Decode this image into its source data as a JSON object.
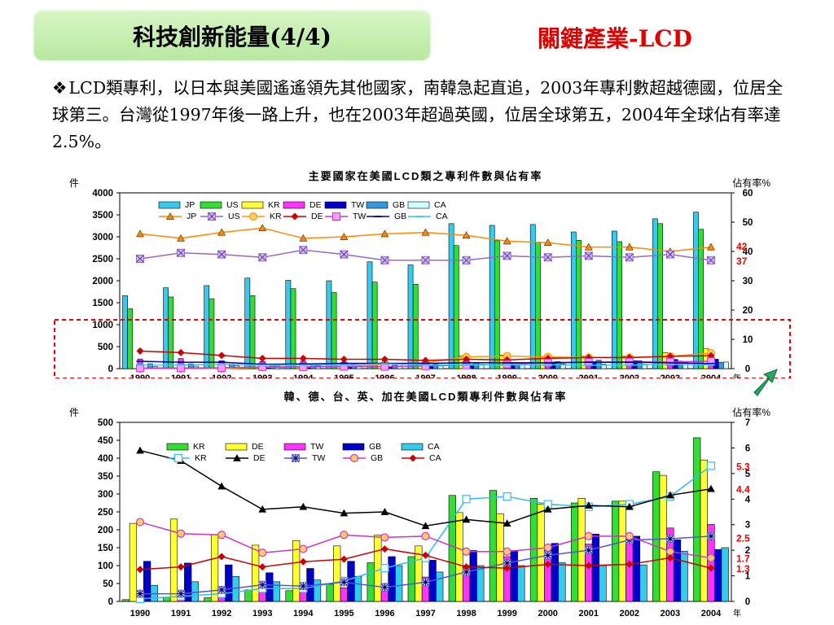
{
  "slide": {
    "title": "科技創新能量(4/4)",
    "subject": "關鍵產業-LCD",
    "bullet_icon": "diamond-bullet",
    "body": "LCD類專利，以日本與美國遙遙領先其他國家，南韓急起直追，2003年專利數超越德國，位居全球第三。台灣從1997年後一路上升，也在2003年超過英國，位居全球第五，2004年全球佔有率達2.5%。",
    "arrow_icon": "green-arrow-icon"
  },
  "chart_data": [
    {
      "type": "bar",
      "title": "主要國家在美國LCD類之專利件數與佔有率",
      "ylabel_left": "件",
      "ylabel_right": "佔有率%",
      "xunit": "年",
      "categories": [
        "1990",
        "1991",
        "1992",
        "1993",
        "1994",
        "1995",
        "1996",
        "1997",
        "1998",
        "1999",
        "2000",
        "2001",
        "2002",
        "2003",
        "2004"
      ],
      "ylim_left": [
        0,
        4000
      ],
      "yticks_left": [
        0,
        500,
        1000,
        1500,
        2000,
        2500,
        3000,
        3500,
        4000
      ],
      "ylim_right": [
        0,
        60
      ],
      "yticks_right": [
        0,
        10,
        20,
        30,
        40,
        50,
        60
      ],
      "bar_series": [
        {
          "name": "JP",
          "color": "#33ccee",
          "values": [
            1660,
            1840,
            1890,
            2060,
            2010,
            2000,
            2430,
            2360,
            3300,
            3260,
            3280,
            3110,
            3130,
            3410,
            3560
          ]
        },
        {
          "name": "US",
          "color": "#33dd33",
          "values": [
            1360,
            1630,
            1590,
            1660,
            1820,
            1730,
            1970,
            1920,
            2800,
            2910,
            2880,
            2920,
            2890,
            3300,
            3170
          ]
        },
        {
          "name": "KR",
          "color": "#ffff33",
          "values": [
            0,
            10,
            10,
            30,
            30,
            40,
            100,
            130,
            290,
            310,
            280,
            280,
            280,
            360,
            460
          ]
        },
        {
          "name": "DE",
          "color": "#ff33ff",
          "values": [
            220,
            230,
            180,
            160,
            170,
            150,
            180,
            150,
            250,
            240,
            270,
            290,
            280,
            350,
            390
          ]
        },
        {
          "name": "TW",
          "color": "#0000cc",
          "values": [
            5,
            5,
            15,
            30,
            30,
            40,
            50,
            70,
            100,
            130,
            150,
            160,
            180,
            210,
            215
          ]
        },
        {
          "name": "GB",
          "color": "#3399dd",
          "values": [
            110,
            110,
            100,
            80,
            90,
            110,
            120,
            110,
            140,
            140,
            160,
            190,
            180,
            170,
            145
          ]
        },
        {
          "name": "CA",
          "color": "#ccffff",
          "values": [
            45,
            55,
            70,
            55,
            60,
            70,
            100,
            80,
            100,
            100,
            110,
            100,
            100,
            140,
            150
          ]
        }
      ],
      "line_series": [
        {
          "name": "JP",
          "color": "#ff8800",
          "marker": "triangle",
          "values": [
            46,
            44.5,
            46.5,
            48,
            44.5,
            45,
            46,
            46.5,
            45.5,
            43.5,
            43,
            41.5,
            41.5,
            40,
            41.5
          ]
        },
        {
          "name": "US",
          "color": "#9966cc",
          "marker": "x-box",
          "values": [
            37.5,
            39.5,
            39,
            38,
            40.5,
            39,
            37,
            37,
            37,
            38.5,
            38,
            38.5,
            38,
            39,
            37
          ]
        },
        {
          "name": "KR",
          "color": "#ff9900",
          "marker": "circle",
          "values": [
            0,
            0,
            0,
            0.5,
            0.5,
            0.8,
            1.5,
            2,
            4,
            4.3,
            4,
            3.8,
            3.8,
            4.2,
            5.3
          ]
        },
        {
          "name": "DE",
          "color": "#cc0000",
          "marker": "diamond",
          "values": [
            6,
            5.5,
            4.5,
            3.5,
            3.5,
            3.2,
            3.2,
            2.8,
            3.2,
            3,
            3.5,
            3.8,
            3.8,
            4.2,
            4.4
          ]
        },
        {
          "name": "TW",
          "color": "#cc33cc",
          "marker": "square",
          "values": [
            0.2,
            0.2,
            0.3,
            0.6,
            0.6,
            0.7,
            0.7,
            0.9,
            1.2,
            1.5,
            2,
            2.2,
            2.3,
            2.3,
            2.5
          ]
        },
        {
          "name": "GB",
          "color": "#000099",
          "marker": "dash",
          "values": [
            2.5,
            2.2,
            2.2,
            1.5,
            1.6,
            1.8,
            1.8,
            1.8,
            2,
            2,
            2,
            2.2,
            2.2,
            2,
            1.7
          ]
        },
        {
          "name": "CA",
          "color": "#33ccee",
          "marker": "dash",
          "values": [
            1.2,
            1.3,
            1.5,
            1.2,
            1.2,
            1.3,
            1.6,
            1.3,
            1.3,
            1.3,
            1.4,
            1.2,
            1.2,
            1.5,
            1.3
          ]
        }
      ],
      "end_labels": [
        {
          "text": "42",
          "value": 42
        },
        {
          "text": "37",
          "value": 37
        }
      ],
      "highlight_box": "dashed-red"
    },
    {
      "type": "bar",
      "title": "韓、德、台、英、加在美國LCD類專利件數與佔有率",
      "ylabel_left": "件",
      "ylabel_right": "佔有率%",
      "xunit": "年",
      "categories": [
        "1990",
        "1991",
        "1992",
        "1993",
        "1994",
        "1995",
        "1996",
        "1997",
        "1998",
        "1999",
        "2000",
        "2001",
        "2002",
        "2003",
        "2004"
      ],
      "ylim_left": [
        0,
        500
      ],
      "yticks_left": [
        0,
        50,
        100,
        150,
        200,
        250,
        300,
        350,
        400,
        450,
        500
      ],
      "ylim_right": [
        0,
        7
      ],
      "yticks_right": [
        0,
        1,
        2,
        3,
        4,
        5,
        6,
        7
      ],
      "bar_series": [
        {
          "name": "KR",
          "color": "#33dd33",
          "values": [
            5,
            12,
            10,
            32,
            30,
            48,
            108,
            125,
            296,
            310,
            288,
            275,
            280,
            362,
            457
          ]
        },
        {
          "name": "DE",
          "color": "#ffff33",
          "values": [
            218,
            230,
            187,
            157,
            170,
            155,
            185,
            155,
            248,
            245,
            272,
            288,
            280,
            352,
            395
          ]
        },
        {
          "name": "TW",
          "color": "#ff33ff",
          "values": [
            4,
            8,
            18,
            30,
            30,
            38,
            50,
            68,
            100,
            125,
            150,
            160,
            182,
            205,
            215
          ]
        },
        {
          "name": "GB",
          "color": "#0000cc",
          "values": [
            112,
            107,
            102,
            80,
            92,
            112,
            125,
            115,
            142,
            142,
            162,
            188,
            182,
            172,
            145
          ]
        },
        {
          "name": "CA",
          "color": "#33ccee",
          "values": [
            45,
            55,
            70,
            55,
            60,
            70,
            100,
            82,
            100,
            100,
            108,
            100,
            102,
            140,
            150
          ]
        }
      ],
      "line_series": [
        {
          "name": "KR",
          "color": "#33bbee",
          "marker": "open-square",
          "values": [
            0.1,
            0.2,
            0.3,
            0.5,
            0.5,
            0.8,
            1.3,
            1.7,
            4,
            4.1,
            3.8,
            3.7,
            3.8,
            4.1,
            5.3
          ]
        },
        {
          "name": "DE",
          "color": "#000000",
          "marker": "triangle",
          "values": [
            5.9,
            5.5,
            4.5,
            3.6,
            3.7,
            3.45,
            3.5,
            2.95,
            3.2,
            3.05,
            3.6,
            3.75,
            3.7,
            4.15,
            4.4
          ]
        },
        {
          "name": "TW",
          "color": "#5555cc",
          "marker": "asterisk",
          "values": [
            0.3,
            0.3,
            0.45,
            0.65,
            0.6,
            0.75,
            0.55,
            0.75,
            1.15,
            1.5,
            1.8,
            2,
            2.4,
            2.45,
            2.55
          ]
        },
        {
          "name": "GB",
          "color": "#cc33cc",
          "marker": "circle",
          "values": [
            3.1,
            2.65,
            2.6,
            1.9,
            2.05,
            2.6,
            2.5,
            2.55,
            1.95,
            1.95,
            2.1,
            2.55,
            2.55,
            1.95,
            1.7
          ]
        },
        {
          "name": "CA",
          "color": "#cc0000",
          "marker": "diamond",
          "values": [
            1.25,
            1.35,
            1.75,
            1.35,
            1.55,
            1.65,
            2.05,
            1.8,
            1.35,
            1.3,
            1.45,
            1.4,
            1.45,
            1.7,
            1.3
          ]
        }
      ],
      "end_labels": [
        {
          "text": "5.3",
          "value": 5.3
        },
        {
          "text": "4.4",
          "value": 4.4
        },
        {
          "text": "2.5",
          "value": 2.5
        },
        {
          "text": "1.7",
          "value": 1.7
        },
        {
          "text": "1.3",
          "value": 1.3
        }
      ]
    }
  ]
}
